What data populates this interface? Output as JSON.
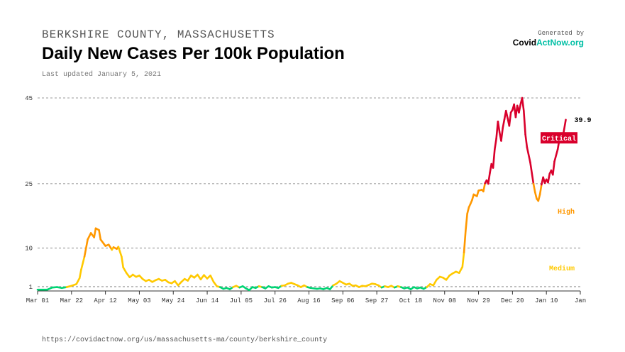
{
  "header": {
    "subtitle": "BERKSHIRE COUNTY, MASSACHUSETTS",
    "title": "Daily New Cases Per 100k Population",
    "updated": "Last updated January 5, 2021"
  },
  "brand": {
    "generated_by": "Generated by",
    "logo_part1": "Covid",
    "logo_part2": "ActNow.org"
  },
  "footer": {
    "url": "https://covidactnow.org/us/massachusetts-ma/county/berkshire_county"
  },
  "chart_data": {
    "type": "line",
    "title": "Daily New Cases Per 100k Population",
    "xlabel": "",
    "ylabel": "",
    "ylim": [
      0,
      45
    ],
    "y_ticks": [
      1,
      10,
      25,
      45
    ],
    "x_ticks": [
      "Mar 01",
      "Mar 22",
      "Apr 12",
      "May 03",
      "May 24",
      "Jun 14",
      "Jul 05",
      "Jul 26",
      "Aug 16",
      "Sep 06",
      "Sep 27",
      "Oct 18",
      "Nov 08",
      "Nov 29",
      "Dec 20",
      "Jan 10",
      "Jan"
    ],
    "last_value_label": "39.9",
    "level_labels": [
      {
        "label": "Critical",
        "color": "#d9002c"
      },
      {
        "label": "High",
        "color": "#ff9800"
      },
      {
        "label": "Medium",
        "color": "#ffc900"
      }
    ],
    "level_colors": {
      "low": "#00d474",
      "medium": "#ffc900",
      "high": "#ff9800",
      "critical": "#d9002c"
    },
    "series": [
      {
        "x_day_labels_note": "",
        "points": [
          [
            0,
            0.3
          ],
          [
            6,
            0.3
          ],
          [
            9,
            0.8
          ],
          [
            12,
            0.9
          ],
          [
            15,
            0.7
          ],
          [
            18,
            0.9
          ],
          [
            21,
            1.2
          ],
          [
            24,
            1.6
          ],
          [
            26,
            3
          ],
          [
            27,
            5
          ],
          [
            29,
            8
          ],
          [
            31,
            12
          ],
          [
            33,
            13.5
          ],
          [
            35,
            12.5
          ],
          [
            36,
            14.6
          ],
          [
            38,
            14.2
          ],
          [
            39,
            12
          ],
          [
            41,
            11
          ],
          [
            42,
            10.5
          ],
          [
            44,
            10.8
          ],
          [
            46,
            9.6
          ],
          [
            47,
            10.2
          ],
          [
            49,
            9.8
          ],
          [
            50,
            10.3
          ],
          [
            52,
            8
          ],
          [
            53,
            5.5
          ],
          [
            55,
            4.2
          ],
          [
            57,
            3.2
          ],
          [
            59,
            3.8
          ],
          [
            61,
            3.3
          ],
          [
            63,
            3.6
          ],
          [
            65,
            2.8
          ],
          [
            67,
            2.3
          ],
          [
            69,
            2.6
          ],
          [
            71,
            2.1
          ],
          [
            73,
            2.5
          ],
          [
            75,
            2.8
          ],
          [
            77,
            2.4
          ],
          [
            79,
            2.6
          ],
          [
            81,
            2
          ],
          [
            83,
            1.8
          ],
          [
            85,
            2.3
          ],
          [
            87,
            1.3
          ],
          [
            89,
            2.1
          ],
          [
            91,
            2.8
          ],
          [
            93,
            2.4
          ],
          [
            95,
            3.6
          ],
          [
            97,
            3.1
          ],
          [
            99,
            3.8
          ],
          [
            101,
            2.7
          ],
          [
            103,
            3.7
          ],
          [
            105,
            2.9
          ],
          [
            107,
            3.6
          ],
          [
            109,
            2.1
          ],
          [
            111,
            1.1
          ],
          [
            113,
            0.9
          ],
          [
            115,
            0.5
          ],
          [
            117,
            0.7
          ],
          [
            119,
            0.4
          ],
          [
            121,
            0.9
          ],
          [
            123,
            1.2
          ],
          [
            125,
            0.8
          ],
          [
            127,
            1.1
          ],
          [
            129,
            0.6
          ],
          [
            131,
            0.2
          ],
          [
            133,
            0.9
          ],
          [
            135,
            0.7
          ],
          [
            137,
            1.1
          ],
          [
            139,
            0.9
          ],
          [
            141,
            0.6
          ],
          [
            143,
            1.1
          ],
          [
            145,
            0.8
          ],
          [
            147,
            0.9
          ],
          [
            149,
            0.7
          ],
          [
            151,
            1.2
          ],
          [
            153,
            1.3
          ],
          [
            155,
            1.7
          ],
          [
            157,
            1.9
          ],
          [
            159,
            1.6
          ],
          [
            161,
            1.3
          ],
          [
            163,
            0.9
          ],
          [
            165,
            1.3
          ],
          [
            167,
            0.9
          ],
          [
            169,
            0.7
          ],
          [
            171,
            0.6
          ],
          [
            173,
            0.5
          ],
          [
            175,
            0.6
          ],
          [
            177,
            0.4
          ],
          [
            179,
            0.7
          ],
          [
            181,
            0.4
          ],
          [
            183,
            1.3
          ],
          [
            185,
            1.7
          ],
          [
            187,
            2.3
          ],
          [
            189,
            1.9
          ],
          [
            191,
            1.5
          ],
          [
            193,
            1.7
          ],
          [
            195,
            1.2
          ],
          [
            197,
            1.3
          ],
          [
            199,
            0.9
          ],
          [
            201,
            1.2
          ],
          [
            203,
            1.1
          ],
          [
            205,
            1.4
          ],
          [
            207,
            1.7
          ],
          [
            209,
            1.6
          ],
          [
            211,
            1.3
          ],
          [
            213,
            0.8
          ],
          [
            215,
            1.1
          ],
          [
            217,
            0.9
          ],
          [
            219,
            1.2
          ],
          [
            221,
            0.8
          ],
          [
            223,
            1.1
          ],
          [
            225,
            0.9
          ],
          [
            227,
            0.6
          ],
          [
            229,
            0.8
          ],
          [
            231,
            0.4
          ],
          [
            233,
            0.9
          ],
          [
            235,
            0.6
          ],
          [
            237,
            0.8
          ],
          [
            239,
            0.5
          ],
          [
            241,
            0.9
          ],
          [
            243,
            1.6
          ],
          [
            245,
            1.3
          ],
          [
            247,
            2.6
          ],
          [
            249,
            3.3
          ],
          [
            251,
            3.1
          ],
          [
            253,
            2.6
          ],
          [
            255,
            3.6
          ],
          [
            257,
            4.1
          ],
          [
            259,
            4.5
          ],
          [
            261,
            4.2
          ],
          [
            263,
            5.6
          ],
          [
            264,
            9
          ],
          [
            265,
            14
          ],
          [
            266,
            18
          ],
          [
            267,
            19.5
          ],
          [
            268,
            20.3
          ],
          [
            269,
            21.2
          ],
          [
            270,
            22.5
          ],
          [
            272,
            22.1
          ],
          [
            273,
            23.4
          ],
          [
            275,
            23.6
          ],
          [
            276,
            23.2
          ],
          [
            277,
            25.1
          ],
          [
            278,
            25.8
          ],
          [
            279,
            25
          ],
          [
            280,
            27.5
          ],
          [
            281,
            29.6
          ],
          [
            282,
            28.7
          ],
          [
            283,
            33
          ],
          [
            284,
            35.5
          ],
          [
            285,
            39.5
          ],
          [
            286,
            37
          ],
          [
            287,
            35
          ],
          [
            288,
            38
          ],
          [
            289,
            40
          ],
          [
            290,
            42
          ],
          [
            291,
            40.3
          ],
          [
            292,
            38.5
          ],
          [
            293,
            41.6
          ],
          [
            294,
            42.2
          ],
          [
            295,
            43.5
          ],
          [
            296,
            40.5
          ],
          [
            297,
            43.2
          ],
          [
            298,
            41.6
          ],
          [
            299,
            43.5
          ],
          [
            300,
            45
          ],
          [
            301,
            42
          ],
          [
            302,
            36.5
          ],
          [
            303,
            33.5
          ],
          [
            305,
            30
          ],
          [
            307,
            25
          ],
          [
            308,
            23
          ],
          [
            309,
            21.5
          ],
          [
            310,
            21
          ],
          [
            311,
            22.5
          ],
          [
            312,
            24.8
          ],
          [
            313,
            26.5
          ],
          [
            314,
            25.2
          ],
          [
            315,
            26
          ],
          [
            316,
            25.3
          ],
          [
            317,
            27.3
          ],
          [
            318,
            28.1
          ],
          [
            319,
            27.1
          ],
          [
            320,
            30.2
          ],
          [
            322,
            33
          ],
          [
            323,
            35.2
          ],
          [
            325,
            35.5
          ],
          [
            327,
            39.9
          ]
        ]
      }
    ]
  }
}
